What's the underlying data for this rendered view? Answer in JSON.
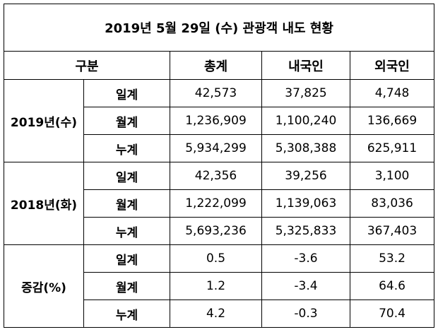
{
  "title": "2019년 5월 29일 (수) 관광객 내도 현황",
  "header": [
    "구분",
    "총계",
    "내국인",
    "외국인"
  ],
  "groups": [
    {
      "label": "2019년(수)",
      "rows": [
        {
          "label": "일계",
          "cells": [
            "42,573",
            "37,825",
            "4,748"
          ]
        },
        {
          "label": "월계",
          "cells": [
            "1,236,909",
            "1,100,240",
            "136,669"
          ]
        },
        {
          "label": "누계",
          "cells": [
            "5,934,299",
            "5,308,388",
            "625,911"
          ]
        }
      ]
    },
    {
      "label": "2018년(화)",
      "rows": [
        {
          "label": "일계",
          "cells": [
            "42,356",
            "39,256",
            "3,100"
          ]
        },
        {
          "label": "월계",
          "cells": [
            "1,222,099",
            "1,139,063",
            "83,036"
          ]
        },
        {
          "label": "누계",
          "cells": [
            "5,693,236",
            "5,325,833",
            "367,403"
          ]
        }
      ]
    },
    {
      "label": "증감(%)",
      "rows": [
        {
          "label": "일계",
          "cells": [
            "0.5",
            "-3.6",
            "53.2"
          ]
        },
        {
          "label": "월계",
          "cells": [
            "1.2",
            "-3.4",
            "64.6"
          ]
        },
        {
          "label": "누계",
          "cells": [
            "4.2",
            "-0.3",
            "70.4"
          ]
        }
      ]
    }
  ]
}
